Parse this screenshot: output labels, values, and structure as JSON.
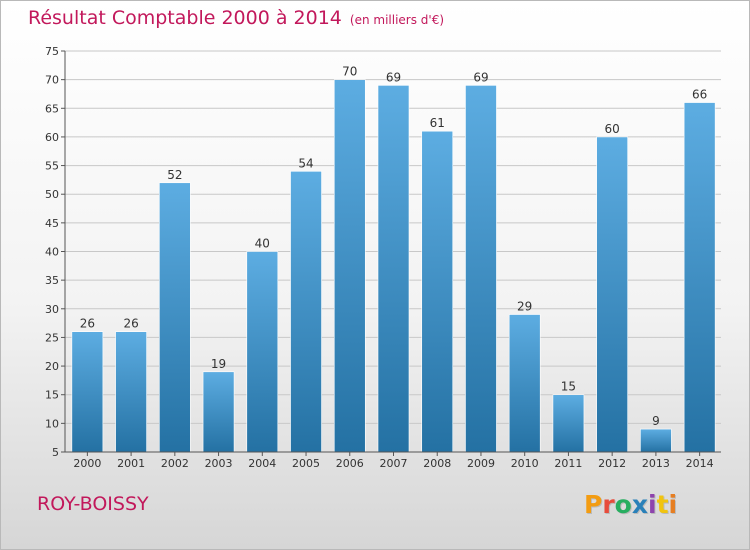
{
  "header": {
    "title": "Résultat Comptable 2000 à 2014",
    "subtitle": "(en milliers d'€)"
  },
  "footer": {
    "commune": "ROY-BOISSY",
    "brand": "Proxiti",
    "brand_colors": [
      "#f39c12",
      "#e74c3c",
      "#27ae60",
      "#2980b9",
      "#8e44ad",
      "#f1c40f",
      "#e67e22"
    ]
  },
  "colors": {
    "bar_light": "#5dade2",
    "bar_dark": "#2471a3",
    "grid": "#c8c8c8",
    "axis": "#555555",
    "title": "#c2185b"
  },
  "chart_data": {
    "type": "bar",
    "title": "Résultat Comptable 2000 à 2014",
    "subtitle": "(en milliers d'€)",
    "categories": [
      "2000",
      "2001",
      "2002",
      "2003",
      "2004",
      "2005",
      "2006",
      "2007",
      "2008",
      "2009",
      "2010",
      "2011",
      "2012",
      "2013",
      "2014"
    ],
    "values": [
      26,
      26,
      52,
      19,
      40,
      54,
      70,
      69,
      61,
      69,
      29,
      15,
      60,
      9,
      66
    ],
    "ylim": [
      5,
      75
    ],
    "yticks": [
      5,
      10,
      15,
      20,
      25,
      30,
      35,
      40,
      45,
      50,
      55,
      60,
      65,
      70,
      75
    ],
    "grid": true,
    "legend": "none",
    "xlabel": "",
    "ylabel": ""
  }
}
